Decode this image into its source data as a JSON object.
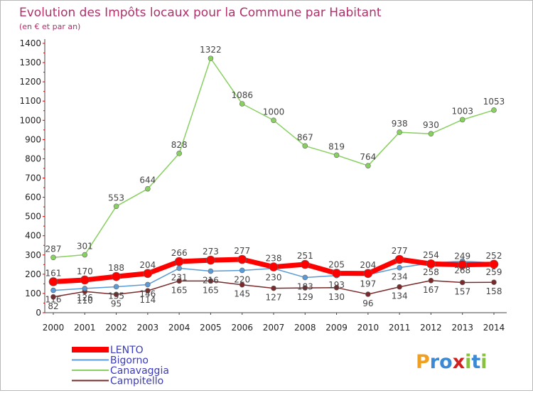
{
  "chart_data": {
    "type": "line",
    "title": "Evolution des Impôts locaux pour la Commune par Habitant",
    "subtitle": "(en € et par an)",
    "x": [
      "2000",
      "2001",
      "2002",
      "2003",
      "2004",
      "2005",
      "2006",
      "2007",
      "2008",
      "2009",
      "2010",
      "2011",
      "2012",
      "2013",
      "2014"
    ],
    "ylim": [
      0,
      1400
    ],
    "yticks": [
      0,
      100,
      200,
      300,
      400,
      500,
      600,
      700,
      800,
      900,
      1000,
      1100,
      1200,
      1300,
      1400
    ],
    "grid": false,
    "legend_position": "bottom-left",
    "series": [
      {
        "name": "LENTO",
        "color": "#ff0000",
        "values": [
          161,
          170,
          188,
          204,
          266,
          273,
          277,
          238,
          251,
          205,
          204,
          277,
          254,
          249,
          252
        ]
      },
      {
        "name": "Bigorno",
        "color": "#5a9ad5",
        "values": [
          116,
          126,
          135,
          146,
          231,
          216,
          220,
          230,
          183,
          193,
          197,
          234,
          258,
          268,
          259
        ]
      },
      {
        "name": "Canavaggia",
        "color": "#88d060",
        "values": [
          287,
          301,
          553,
          644,
          828,
          1322,
          1086,
          1000,
          867,
          819,
          764,
          938,
          930,
          1003,
          1053
        ]
      },
      {
        "name": "Campitello",
        "color": "#7a2a2a",
        "values": [
          82,
          110,
          95,
          114,
          165,
          165,
          145,
          127,
          129,
          130,
          96,
          134,
          167,
          157,
          158
        ]
      }
    ],
    "data_labels": {
      "LENTO": [
        "161",
        "170",
        "188",
        "204",
        "266",
        "273",
        "277",
        "238",
        "251",
        "205",
        "204",
        "277",
        "254",
        "249",
        "252"
      ],
      "Bigorno": [
        "116",
        "126",
        "135",
        "146",
        "231",
        "216",
        "220",
        "230",
        "183",
        "193",
        "197",
        "234",
        "258",
        "268",
        "259"
      ],
      "Canavaggia": [
        "287",
        "301",
        "553",
        "644",
        "828",
        "1322",
        "1086",
        "1000",
        "867",
        "819",
        "764",
        "938",
        "930",
        "1003",
        "1053"
      ],
      "Campitello": [
        "82",
        "110",
        "95",
        "114",
        "165",
        "165",
        "145",
        "127",
        "129",
        "130",
        "96",
        "134",
        "167",
        "157",
        "158"
      ]
    }
  },
  "watermark": {
    "text": "Proxiti"
  }
}
